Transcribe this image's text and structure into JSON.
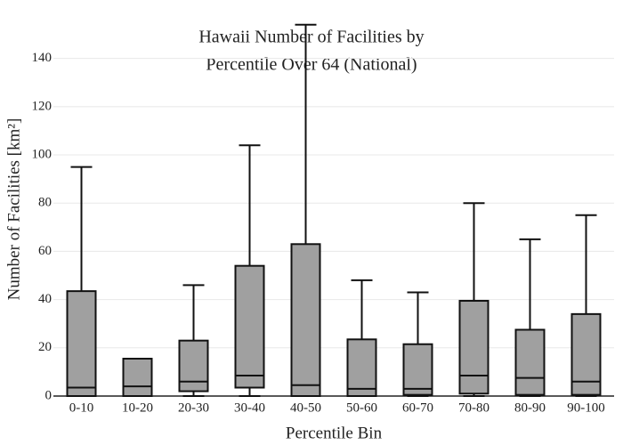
{
  "chart_data": {
    "type": "box",
    "title": [
      "Hawaii Number of Facilities by",
      "Percentile Over 64 (National)"
    ],
    "x_label": "Percentile Bin",
    "y_label": "Number of Facilities  [km²]",
    "categories": [
      "0-10",
      "10-20",
      "20-30",
      "30-40",
      "40-50",
      "50-60",
      "60-70",
      "70-80",
      "80-90",
      "90-100"
    ],
    "min": [
      0,
      0,
      0,
      0,
      0,
      0,
      0,
      0,
      0,
      0
    ],
    "q1": [
      0,
      0,
      2,
      3.5,
      0,
      0,
      0.5,
      1,
      0.5,
      0.5
    ],
    "median": [
      3.5,
      4,
      6,
      8.5,
      4.5,
      3,
      3,
      8.5,
      7.5,
      6
    ],
    "q3": [
      43.5,
      15.5,
      23,
      54,
      63,
      23.5,
      21.5,
      39.5,
      27.5,
      34
    ],
    "max": [
      95,
      15.5,
      46,
      104,
      154,
      48,
      43,
      80,
      65,
      75
    ],
    "color": "#a0a0a0",
    "ylim": [
      0,
      155
    ],
    "yticks": [
      0,
      20,
      40,
      60,
      80,
      100,
      120,
      140
    ],
    "grid": true
  }
}
